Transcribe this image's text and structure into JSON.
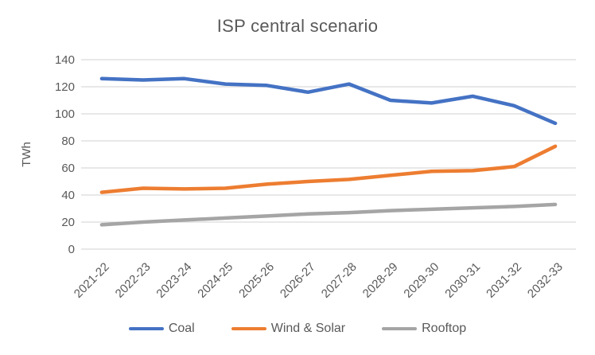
{
  "chart_data": {
    "type": "line",
    "title": "ISP central scenario",
    "xlabel": "",
    "ylabel": "TWh",
    "categories": [
      "2021-22",
      "2022-23",
      "2023-24",
      "2024-25",
      "2025-26",
      "2026-27",
      "2027-28",
      "2028-29",
      "2029-30",
      "2030-31",
      "2031-32",
      "2032-33"
    ],
    "series": [
      {
        "name": "Coal",
        "color": "#4472C4",
        "values": [
          126,
          125,
          126,
          122,
          121,
          116,
          122,
          110,
          108,
          113,
          106,
          93
        ]
      },
      {
        "name": "Wind & Solar",
        "color": "#ED7D31",
        "values": [
          42,
          45,
          44.5,
          45,
          48,
          50,
          51.5,
          54.5,
          57.5,
          58,
          61,
          76
        ]
      },
      {
        "name": "Rooftop",
        "color": "#A5A5A5",
        "values": [
          18,
          20,
          21.5,
          23,
          24.5,
          26,
          27,
          28.5,
          29.5,
          30.5,
          31.5,
          33
        ]
      }
    ],
    "y_axis": {
      "min": 0,
      "max": 140,
      "step": 20,
      "tick_labels": [
        "0",
        "20",
        "40",
        "60",
        "80",
        "100",
        "120",
        "140"
      ]
    },
    "grid": true,
    "legend_position": "bottom"
  },
  "colors": {
    "text": "#595959",
    "gridline": "#D9D9D9",
    "background": "#FFFFFF"
  }
}
